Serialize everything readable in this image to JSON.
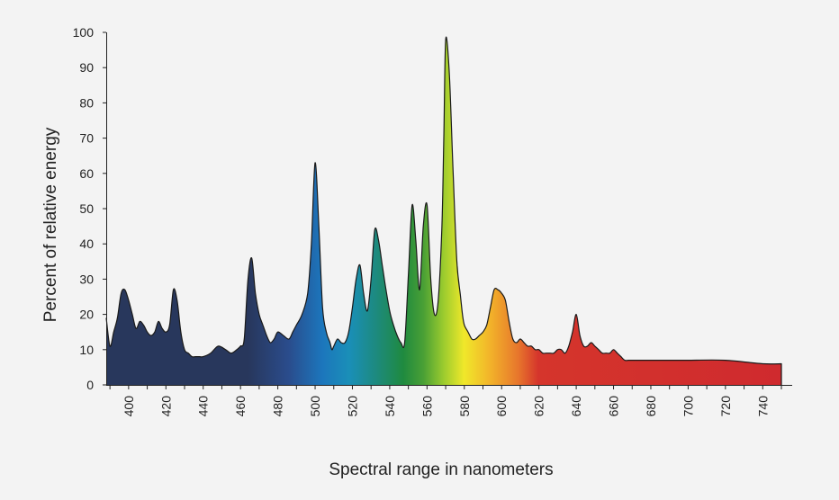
{
  "chart_data": {
    "type": "area",
    "title": "",
    "xlabel": "Spectral range in nanometers",
    "ylabel": "Percent of relative energy",
    "xlim": [
      388,
      750
    ],
    "ylim": [
      0,
      100
    ],
    "x_ticks": [
      400,
      420,
      440,
      460,
      480,
      500,
      520,
      540,
      560,
      580,
      600,
      620,
      640,
      660,
      680,
      700,
      720,
      740
    ],
    "y_ticks": [
      0,
      10,
      20,
      30,
      40,
      50,
      60,
      70,
      80,
      90,
      100
    ],
    "grid": false,
    "legend": "none",
    "series": [
      {
        "x": [
          388,
          390,
          392,
          394,
          396,
          398,
          400,
          402,
          404,
          406,
          408,
          410,
          412,
          414,
          416,
          418,
          420,
          422,
          424,
          426,
          428,
          430,
          432,
          434,
          436,
          438,
          440,
          444,
          448,
          452,
          455,
          458,
          460,
          462,
          464,
          466,
          468,
          470,
          472,
          474,
          476,
          478,
          480,
          483,
          486,
          488,
          490,
          493,
          496,
          498,
          500,
          502,
          504,
          506,
          508,
          509,
          510,
          512,
          514,
          516,
          518,
          520,
          522,
          524,
          526,
          528,
          530,
          532,
          534,
          536,
          538,
          540,
          542,
          544,
          546,
          548,
          550,
          552,
          554,
          556,
          558,
          560,
          562,
          564,
          566,
          568,
          569,
          570,
          572,
          574,
          576,
          578,
          579,
          580,
          582,
          584,
          586,
          588,
          590,
          592,
          594,
          596,
          598,
          600,
          602,
          604,
          606,
          608,
          610,
          612,
          614,
          616,
          618,
          620,
          622,
          624,
          626,
          628,
          630,
          632,
          634,
          636,
          638,
          640,
          642,
          644,
          646,
          648,
          650,
          652,
          654,
          656,
          658,
          660,
          662,
          664,
          666,
          668,
          670,
          672,
          674,
          676,
          678,
          680,
          682,
          684,
          686,
          688,
          690,
          692,
          694,
          696,
          700,
          720,
          740,
          750
        ],
        "y": [
          19,
          11,
          15,
          19,
          26,
          27,
          24,
          20,
          16,
          18,
          17,
          15,
          14,
          15,
          18,
          16,
          15,
          17,
          27,
          24,
          15,
          10,
          9,
          8,
          8,
          8,
          8,
          9,
          11,
          10,
          9,
          10,
          11,
          13,
          30,
          36,
          26,
          20,
          17,
          14,
          12,
          13,
          15,
          14,
          13,
          15,
          17,
          20,
          26,
          40,
          63,
          45,
          22,
          15,
          12,
          10,
          11,
          13,
          12,
          12,
          15,
          22,
          30,
          34,
          26,
          21,
          30,
          44,
          41,
          34,
          27,
          21,
          17,
          14,
          12,
          12,
          31,
          51,
          41,
          27,
          45,
          51,
          30,
          20,
          24,
          45,
          70,
          98,
          88,
          60,
          35,
          25,
          20,
          17,
          15,
          13,
          13,
          14,
          15,
          17,
          22,
          27,
          27,
          26,
          24,
          18,
          13,
          12,
          13,
          12,
          11,
          11,
          10,
          10,
          9,
          9,
          9,
          9,
          10,
          10,
          9,
          11,
          15,
          20,
          14,
          11,
          11,
          12,
          11,
          10,
          9,
          9,
          9,
          10,
          9,
          8,
          7,
          7,
          7,
          7,
          7,
          7,
          7,
          7,
          7,
          7,
          7,
          7,
          7,
          7,
          7,
          7,
          7,
          7,
          6,
          6
        ]
      }
    ]
  }
}
